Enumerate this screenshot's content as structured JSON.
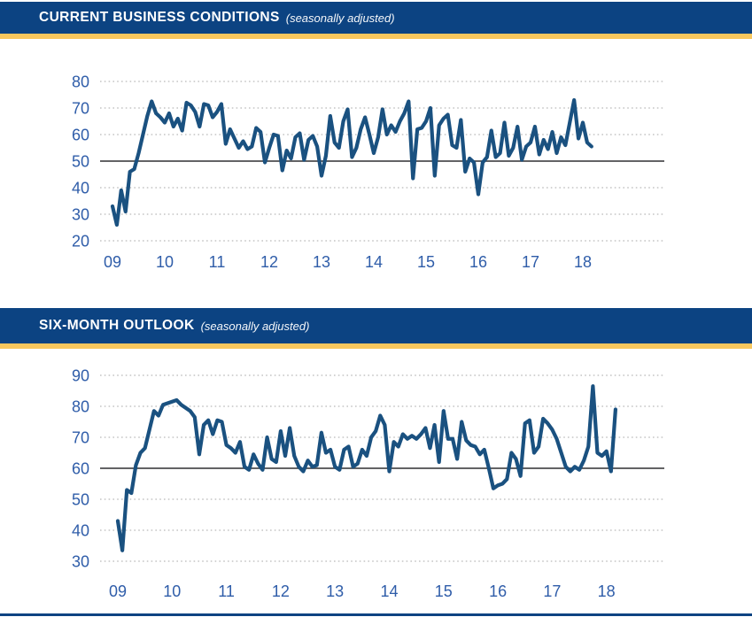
{
  "colors": {
    "header_blue": "#0c4382",
    "gold": "#f8c75e",
    "series_line": "#1a5180",
    "axis_label_blue": "#2f5da9",
    "reference_line_gray": "#4d4d4f",
    "grid_dot_gray": "#b9b9b9",
    "bottom_rule_blue": "#0c4382",
    "header_text": "#ffffff"
  },
  "chart_data": [
    {
      "type": "line",
      "title": "CURRENT BUSINESS CONDITIONS",
      "subtitle": "(seasonally adjusted)",
      "frequency": "monthly",
      "x_start": "2009-01",
      "x_end": "2018-03",
      "x_tick_labels": [
        "09",
        "10",
        "11",
        "12",
        "13",
        "14",
        "15",
        "16",
        "17",
        "18"
      ],
      "y_ticks": [
        80,
        70,
        60,
        50,
        40,
        30,
        20
      ],
      "ylim": [
        20,
        80
      ],
      "reference_line": 50,
      "grid": "dotted horizontal",
      "legend": "none",
      "series": [
        {
          "name": "Current business conditions index",
          "values": [
            33,
            26,
            39,
            31,
            46,
            47,
            53,
            60,
            67,
            72.5,
            68,
            66.5,
            64.5,
            68,
            63,
            66,
            61.5,
            72,
            71,
            68.5,
            63,
            71.5,
            71,
            66.5,
            68.5,
            71.5,
            56.5,
            62,
            58.5,
            55,
            57.5,
            54.5,
            55.5,
            62.5,
            61,
            49.5,
            55,
            60,
            59.5,
            46.5,
            54,
            51,
            59,
            60.5,
            50.5,
            58,
            59.5,
            55.5,
            44.5,
            52,
            67,
            57,
            55,
            65,
            69.5,
            51.5,
            55,
            62,
            66.5,
            60,
            53,
            59,
            69.5,
            60,
            63.5,
            61,
            65,
            68,
            72.5,
            43.5,
            62,
            62.5,
            65,
            70,
            44.5,
            63.5,
            66,
            67.5,
            56,
            55,
            65.5,
            46,
            51,
            49.5,
            37.5,
            49.5,
            51.5,
            61.5,
            51.5,
            53,
            64.5,
            52,
            55,
            63,
            50.5,
            55.5,
            57,
            63,
            52.5,
            58,
            54.5,
            61,
            53,
            59,
            56,
            64.5,
            73,
            58.5,
            64.5,
            57,
            55.5
          ]
        }
      ]
    },
    {
      "type": "line",
      "title": "SIX-MONTH OUTLOOK",
      "subtitle": "(seasonally adjusted)",
      "frequency": "monthly",
      "x_start": "2009-01",
      "x_end": "2018-03",
      "x_tick_labels": [
        "09",
        "10",
        "11",
        "12",
        "13",
        "14",
        "15",
        "16",
        "17",
        "18"
      ],
      "y_ticks": [
        90,
        80,
        70,
        60,
        50,
        40,
        30
      ],
      "ylim": [
        30,
        90
      ],
      "reference_line": 60,
      "grid": "dotted horizontal",
      "legend": "none",
      "series": [
        {
          "name": "Six-month outlook index",
          "values": [
            43,
            33.5,
            53,
            52,
            61,
            65,
            66.5,
            72.5,
            78.5,
            77,
            80.5,
            81,
            81.5,
            82,
            80.5,
            79.5,
            78.5,
            76.5,
            64.5,
            74,
            75.5,
            71,
            75.5,
            75,
            67.5,
            66.5,
            65,
            68.5,
            60.5,
            59.5,
            64.5,
            61.5,
            59.5,
            70,
            63,
            62,
            72,
            64,
            73,
            64,
            60.5,
            59,
            62.5,
            60.5,
            61,
            71.5,
            65,
            66,
            60.5,
            59.5,
            66,
            67,
            60.5,
            61.5,
            66,
            64,
            70,
            72,
            77,
            74,
            59,
            68.5,
            67,
            71,
            69.5,
            70.5,
            69.5,
            71,
            73,
            66.5,
            74,
            62,
            78.5,
            69.5,
            69.5,
            63,
            75,
            69,
            67.5,
            67,
            64.5,
            66,
            60,
            53.5,
            54.5,
            55,
            56.5,
            65,
            63,
            57.5,
            74.5,
            75.5,
            65,
            67,
            76,
            74.5,
            72.5,
            69.5,
            65,
            60.5,
            59,
            60.5,
            59.5,
            62.5,
            67,
            86.5,
            65,
            64,
            65.5,
            59,
            79
          ]
        }
      ]
    }
  ]
}
